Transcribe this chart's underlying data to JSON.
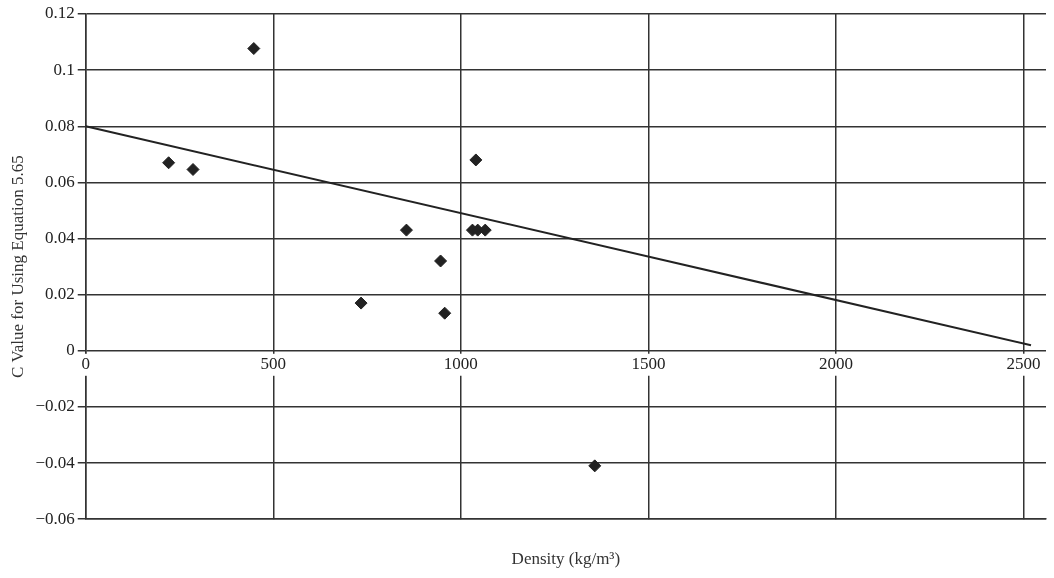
{
  "chart_data": {
    "type": "scatter",
    "xlabel": "Density (kg/m³)",
    "ylabel": "C Value for Using Equation 5.65",
    "series": [
      {
        "color": "#222222",
        "x": [
          221,
          286,
          448,
          734,
          855,
          946,
          957,
          1031,
          1040,
          1045,
          1065,
          1357
        ],
        "values": [
          0.067,
          0.0646,
          0.1077,
          0.017,
          0.043,
          0.032,
          0.0134,
          0.043,
          0.068,
          0.043,
          0.043,
          -0.041
        ]
      },
      {
        "type": "line",
        "marker": "none",
        "color": "#222222",
        "x": [
          0,
          2520
        ],
        "values": [
          0.08,
          0.002
        ]
      }
    ],
    "xlim": [
      0,
      2560
    ],
    "xticks": [
      0,
      500,
      1000,
      1500,
      2000,
      2500
    ],
    "ylim": [
      -0.06,
      0.12
    ],
    "yticks": [
      {
        "value": -0.06,
        "label": "−0.06"
      },
      {
        "value": -0.04,
        "label": "−0.04"
      },
      {
        "value": -0.02,
        "label": "−0.02"
      },
      0,
      0.02,
      0.04,
      0.06,
      0.08,
      0.1,
      0.12
    ],
    "grid": true,
    "legend": false,
    "marker": "diamond",
    "line_style": "solid"
  }
}
